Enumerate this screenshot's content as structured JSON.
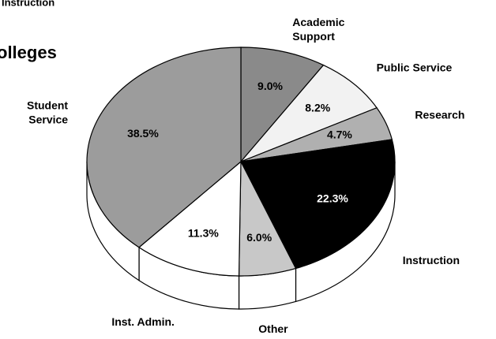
{
  "chart_data": {
    "type": "pie",
    "title": "olleges",
    "subtitle": "Instruction",
    "categories": [
      "Academic Support",
      "Public Service",
      "Research",
      "Instruction",
      "Other",
      "Inst. Admin.",
      "Student Service"
    ],
    "values": [
      9.0,
      8.2,
      4.7,
      22.3,
      6.0,
      11.3,
      38.5
    ],
    "value_labels": [
      "9.0%",
      "8.2%",
      "4.7%",
      "22.3%",
      "6.0%",
      "11.3%",
      "38.5%"
    ],
    "colors": [
      "#8a8a8a",
      "#f2f2f2",
      "#b0b0b0",
      "#000000",
      "#c8c8c8",
      "#ffffff",
      "#9c9c9c"
    ]
  }
}
